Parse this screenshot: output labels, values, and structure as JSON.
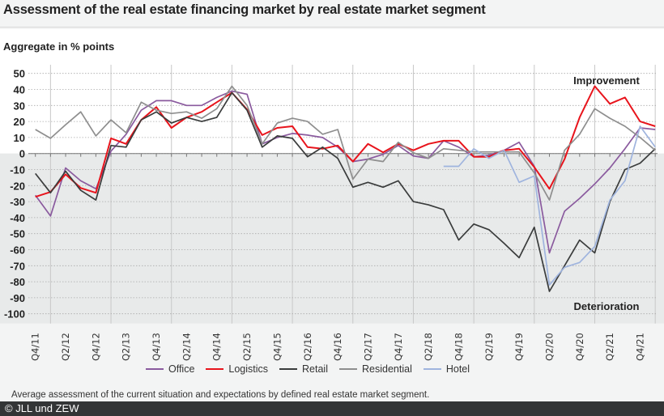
{
  "title": "Assessment of the real estate financing market by real estate market segment",
  "footnote": "Average assessment of the current situation and expectations by defined real estate market segment.",
  "copyright": "© JLL und ZEW",
  "chart_data": {
    "type": "line",
    "ylabel": "Aggregate in % points",
    "ylim": [
      -100,
      50
    ],
    "yticks": [
      50,
      40,
      30,
      20,
      10,
      0,
      -10,
      -20,
      -30,
      -40,
      -50,
      -60,
      -70,
      -80,
      -90,
      -100
    ],
    "grid": true,
    "legend": "bottom",
    "annotations": {
      "top": "Improvement",
      "bottom": "Deterioration"
    },
    "x": [
      "Q4/11",
      "Q1/12",
      "Q2/12",
      "Q3/12",
      "Q4/12",
      "Q1/13",
      "Q2/13",
      "Q3/13",
      "Q4/13",
      "Q1/14",
      "Q2/14",
      "Q3/14",
      "Q4/14",
      "Q1/15",
      "Q2/15",
      "Q3/15",
      "Q4/15",
      "Q1/16",
      "Q2/16",
      "Q3/16",
      "Q4/16",
      "Q1/17",
      "Q2/17",
      "Q3/17",
      "Q4/17",
      "Q1/18",
      "Q2/18",
      "Q3/18",
      "Q4/18",
      "Q1/19",
      "Q2/19",
      "Q3/19",
      "Q4/19",
      "Q1/20",
      "Q2/20",
      "Q3/20",
      "Q4/20",
      "Q1/21",
      "Q2/21",
      "Q3/21",
      "Q4/21",
      "Q1/22"
    ],
    "xtick_labels": [
      "Q4/11",
      "Q2/12",
      "Q4/12",
      "Q2/13",
      "Q4/13",
      "Q2/14",
      "Q4/14",
      "Q2/15",
      "Q4/15",
      "Q2/16",
      "Q4/16",
      "Q2/17",
      "Q4/17",
      "Q2/18",
      "Q4/18",
      "Q2/19",
      "Q4/19",
      "Q2/20",
      "Q4/20",
      "Q2/21",
      "Q4/21"
    ],
    "series": [
      {
        "name": "Office",
        "color": "#8a5a9e",
        "values": [
          -26,
          -39,
          -9,
          -17,
          -22,
          1.5,
          12,
          27,
          33,
          33,
          30,
          30,
          35,
          39,
          37,
          6,
          10,
          12.5,
          11.5,
          10,
          4,
          -5,
          -3.5,
          -0.5,
          5,
          -1.5,
          -3,
          8,
          4,
          -2,
          -1,
          2,
          7,
          -8,
          -62,
          -36,
          -28,
          -19,
          -9,
          3,
          16,
          15
        ]
      },
      {
        "name": "Logistics",
        "color": "#e8141c",
        "values": [
          -27,
          -24,
          -13,
          -21.5,
          -24.5,
          9.5,
          6,
          21,
          29,
          16,
          22.5,
          26,
          32,
          38,
          27.5,
          11.5,
          16,
          17,
          4,
          3,
          5,
          -5,
          6,
          0.7,
          6,
          2,
          6,
          8,
          8,
          -2,
          -2,
          2,
          3,
          -8.5,
          -22,
          -3.5,
          22.5,
          42,
          31,
          35,
          20,
          17
        ]
      },
      {
        "name": "Retail",
        "color": "#3a3c3c",
        "values": [
          -12.5,
          -24.5,
          -11,
          -23,
          -29,
          5,
          4,
          21,
          26,
          19,
          22.5,
          20,
          22.5,
          38,
          27,
          4,
          11,
          9.5,
          -2,
          4,
          -3,
          -21,
          -18,
          -21,
          -17,
          -30,
          -32,
          -35,
          -54,
          -44,
          -47.5,
          -56,
          -65,
          -46,
          -86,
          -70,
          -54,
          -62,
          -30,
          -10,
          -6,
          3
        ]
      },
      {
        "name": "Residential",
        "color": "#8e8e8e",
        "values": [
          15,
          9.5,
          18,
          26,
          11,
          21,
          13,
          32,
          27,
          25,
          26,
          22,
          28,
          42,
          30,
          6,
          19,
          22,
          20,
          12,
          15,
          -16,
          -3.5,
          -5,
          7,
          0.5,
          -3,
          3,
          2,
          1,
          1,
          1,
          1,
          -12,
          -29,
          2,
          12,
          28,
          22,
          17,
          10,
          2
        ]
      },
      {
        "name": "Hotel",
        "color": "#9fb4de",
        "values": [
          null,
          null,
          null,
          null,
          null,
          null,
          null,
          null,
          null,
          null,
          null,
          null,
          null,
          null,
          null,
          null,
          null,
          null,
          null,
          null,
          null,
          null,
          null,
          null,
          null,
          null,
          null,
          -8,
          -8,
          3,
          -3,
          2,
          -18,
          -14,
          -82,
          -71,
          -68,
          -58,
          -29,
          -17,
          17,
          4
        ]
      }
    ]
  }
}
